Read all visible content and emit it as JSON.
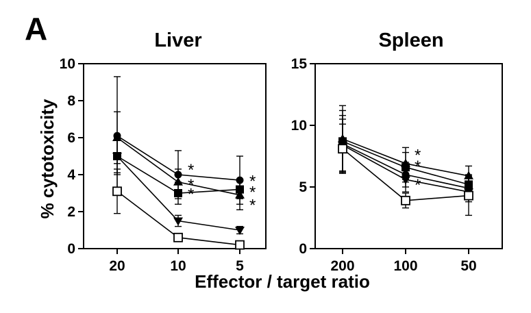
{
  "panel_label": "A",
  "ylabel": "% cytotoxicity",
  "xlabel": "Effector / target ratio",
  "chart_data": [
    {
      "type": "line",
      "title": "Liver",
      "categories": [
        "20",
        "10",
        "5"
      ],
      "ylim": [
        0,
        10
      ],
      "yticks": [
        "0",
        "2",
        "4",
        "6",
        "8",
        "10"
      ],
      "grid": false,
      "series": [
        {
          "marker": "circle",
          "values": [
            6.1,
            4.0,
            3.7
          ],
          "errors": [
            3.2,
            1.3,
            1.3
          ]
        },
        {
          "marker": "triangle-up",
          "values": [
            6.0,
            3.6,
            2.9
          ],
          "errors": [
            1.4,
            0.7,
            0.8
          ]
        },
        {
          "marker": "square",
          "values": [
            5.0,
            3.0,
            3.2
          ],
          "errors": [
            1.0,
            0.6,
            0.5
          ]
        },
        {
          "marker": "triangle-down",
          "values": [
            5.0,
            1.5,
            1.0
          ],
          "errors": [
            0.9,
            0.3,
            0.2
          ]
        },
        {
          "marker": "open-square",
          "values": [
            3.1,
            0.6,
            0.2
          ],
          "errors": [
            1.2,
            0.2,
            0.1
          ]
        }
      ],
      "annotations": [
        {
          "text": "*",
          "category": "10",
          "y": 4.4
        },
        {
          "text": "*",
          "category": "10",
          "y": 3.6
        },
        {
          "text": "*",
          "category": "10",
          "y": 3.1
        },
        {
          "text": "*",
          "category": "5",
          "y": 3.8
        },
        {
          "text": "*",
          "category": "5",
          "y": 3.2
        },
        {
          "text": "*",
          "category": "5",
          "y": 2.5
        }
      ]
    },
    {
      "type": "line",
      "title": "Spleen",
      "categories": [
        "200",
        "100",
        "50"
      ],
      "ylim": [
        0,
        15
      ],
      "yticks": [
        "0",
        "5",
        "10",
        "15"
      ],
      "grid": false,
      "series": [
        {
          "marker": "triangle-up",
          "values": [
            8.9,
            6.9,
            5.9
          ],
          "errors": [
            2.7,
            1.3,
            0.8
          ]
        },
        {
          "marker": "square",
          "values": [
            8.7,
            6.6,
            5.2
          ],
          "errors": [
            2.5,
            1.2,
            0.8
          ]
        },
        {
          "marker": "circle",
          "values": [
            8.5,
            6.0,
            4.9
          ],
          "errors": [
            2.3,
            1.0,
            0.9
          ]
        },
        {
          "marker": "triangle-down",
          "values": [
            8.4,
            5.6,
            4.6
          ],
          "errors": [
            2.1,
            1.0,
            0.8
          ]
        },
        {
          "marker": "open-square",
          "values": [
            8.1,
            3.9,
            4.3
          ],
          "errors": [
            2.0,
            0.6,
            1.6
          ]
        }
      ],
      "annotations": [
        {
          "text": "*",
          "category": "100",
          "y": 7.8
        },
        {
          "text": "*",
          "category": "100",
          "y": 6.9
        },
        {
          "text": "*",
          "category": "100",
          "y": 5.4
        }
      ]
    }
  ]
}
